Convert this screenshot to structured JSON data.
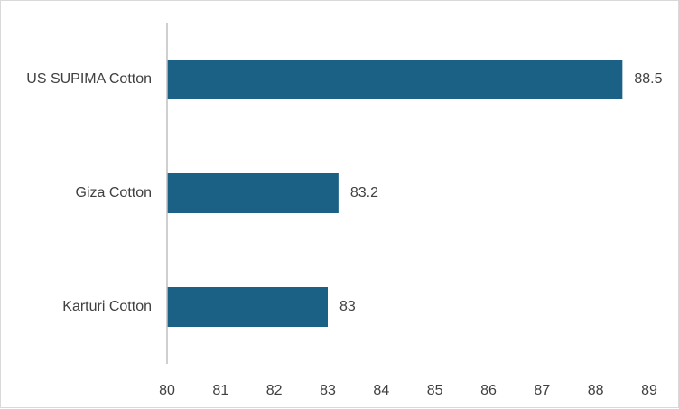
{
  "chart_data": {
    "type": "bar",
    "orientation": "horizontal",
    "categories": [
      "US SUPIMA Cotton",
      "Giza Cotton",
      "Karturi Cotton"
    ],
    "values": [
      88.5,
      83.2,
      83
    ],
    "data_labels": [
      "88.5",
      "83.2",
      "83"
    ],
    "xlim": [
      80,
      89
    ],
    "x_ticks": [
      "80",
      "81",
      "82",
      "83",
      "84",
      "85",
      "86",
      "87",
      "88",
      "89"
    ],
    "bar_color": "#1a6185",
    "axis_color": "#bfbfbf",
    "text_color": "#404040",
    "grid": false,
    "legend": "none",
    "title": "",
    "xlabel": "",
    "ylabel": ""
  }
}
